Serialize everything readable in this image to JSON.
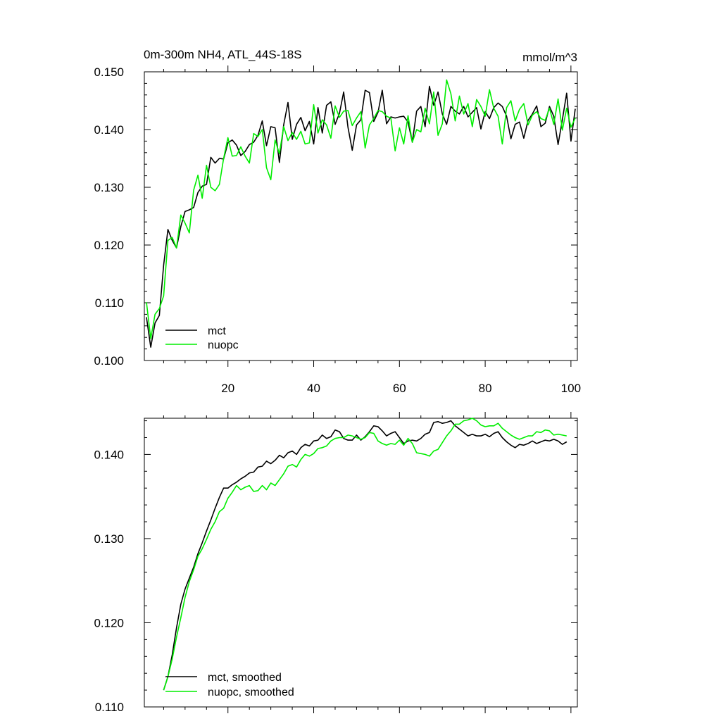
{
  "chart_data": [
    {
      "type": "line",
      "title": "0m-300m NH4, ATL_44S-18S",
      "units": "mmol/m^3",
      "xlabel": "",
      "ylabel": "",
      "xlim": [
        0.5,
        101.5
      ],
      "ylim": [
        0.1,
        0.15
      ],
      "x_ticks": [
        "20",
        "40",
        "60",
        "80",
        "100"
      ],
      "y_ticks": [
        "0.100",
        "0.110",
        "0.120",
        "0.130",
        "0.140",
        "0.150"
      ],
      "legend_position": "bottom-left",
      "x": [
        1,
        2,
        3,
        4,
        5,
        6,
        7,
        8,
        9,
        10,
        11,
        12,
        13,
        14,
        15,
        16,
        17,
        18,
        19,
        20,
        21,
        22,
        23,
        24,
        25,
        26,
        27,
        28,
        29,
        30,
        31,
        32,
        33,
        34,
        35,
        36,
        37,
        38,
        39,
        40,
        41,
        42,
        43,
        44,
        45,
        46,
        47,
        48,
        49,
        50,
        51,
        52,
        53,
        54,
        55,
        56,
        57,
        58,
        59,
        60,
        61,
        62,
        63,
        64,
        65,
        66,
        67,
        68,
        69,
        70,
        71,
        72,
        73,
        74,
        75,
        76,
        77,
        78,
        79,
        80,
        81,
        82,
        83,
        84,
        85,
        86,
        87,
        88,
        89,
        90,
        91,
        92,
        93,
        94,
        95,
        96,
        97,
        98,
        99,
        100,
        101
      ],
      "series": [
        {
          "name": "mct",
          "color": "#000000",
          "values": [
            0.1075,
            0.1023,
            0.1065,
            0.1078,
            0.1165,
            0.1227,
            0.1208,
            0.1195,
            0.1232,
            0.1258,
            0.1261,
            0.1265,
            0.1291,
            0.1302,
            0.1305,
            0.1352,
            0.1342,
            0.135,
            0.1349,
            0.1377,
            0.1382,
            0.1373,
            0.1355,
            0.1362,
            0.1374,
            0.1378,
            0.139,
            0.1415,
            0.1372,
            0.1405,
            0.1403,
            0.1343,
            0.1408,
            0.1447,
            0.1383,
            0.1409,
            0.1421,
            0.1398,
            0.1414,
            0.1375,
            0.1438,
            0.1394,
            0.1442,
            0.1448,
            0.1409,
            0.1428,
            0.1465,
            0.1404,
            0.1364,
            0.1408,
            0.1417,
            0.1468,
            0.1464,
            0.1414,
            0.143,
            0.1468,
            0.141,
            0.1422,
            0.142,
            0.1422,
            0.1423,
            0.1413,
            0.1378,
            0.1432,
            0.144,
            0.1405,
            0.1475,
            0.1442,
            0.1465,
            0.1427,
            0.1409,
            0.144,
            0.1432,
            0.1427,
            0.144,
            0.1422,
            0.143,
            0.1438,
            0.1401,
            0.1431,
            0.1419,
            0.1438,
            0.1446,
            0.144,
            0.1423,
            0.1384,
            0.1409,
            0.1413,
            0.1385,
            0.1416,
            0.1427,
            0.1441,
            0.1405,
            0.1411,
            0.144,
            0.1423,
            0.1374,
            0.1417,
            0.1463,
            0.138,
            0.1436
          ]
        },
        {
          "name": "nuopc",
          "color": "#00ee00",
          "values": [
            0.1101,
            0.1038,
            0.108,
            0.109,
            0.1112,
            0.1208,
            0.1213,
            0.1195,
            0.1252,
            0.1238,
            0.1221,
            0.1295,
            0.1321,
            0.1281,
            0.1338,
            0.13,
            0.1294,
            0.1305,
            0.135,
            0.1386,
            0.1354,
            0.1355,
            0.137,
            0.1354,
            0.1342,
            0.1393,
            0.1388,
            0.14,
            0.1334,
            0.1313,
            0.1382,
            0.1358,
            0.1405,
            0.1381,
            0.1395,
            0.1383,
            0.1397,
            0.1375,
            0.1377,
            0.1443,
            0.1394,
            0.1417,
            0.1408,
            0.1385,
            0.1441,
            0.1421,
            0.1432,
            0.1433,
            0.1407,
            0.142,
            0.1431,
            0.1368,
            0.1408,
            0.1419,
            0.1433,
            0.1431,
            0.1423,
            0.142,
            0.1363,
            0.1403,
            0.1375,
            0.1424,
            0.1378,
            0.14,
            0.1396,
            0.1437,
            0.141,
            0.1465,
            0.139,
            0.141,
            0.1486,
            0.1462,
            0.1415,
            0.1458,
            0.1427,
            0.1445,
            0.1405,
            0.1452,
            0.144,
            0.1423,
            0.1469,
            0.1437,
            0.1423,
            0.1375,
            0.1438,
            0.145,
            0.1415,
            0.1435,
            0.1445,
            0.1408,
            0.1425,
            0.1431,
            0.1419,
            0.1416,
            0.1437,
            0.1409,
            0.1453,
            0.1399,
            0.1437,
            0.1404,
            0.142
          ]
        }
      ]
    },
    {
      "type": "line",
      "title": "",
      "xlabel": "",
      "ylabel": "",
      "xlim": [
        0.5,
        101.5
      ],
      "ylim": [
        0.11,
        0.1443
      ],
      "x_ticks": [],
      "y_ticks": [
        "0.110",
        "0.120",
        "0.130",
        "0.140"
      ],
      "legend_position": "bottom-left",
      "x": [
        5,
        6,
        7,
        8,
        9,
        10,
        11,
        12,
        13,
        14,
        15,
        16,
        17,
        18,
        19,
        20,
        21,
        22,
        23,
        24,
        25,
        26,
        27,
        28,
        29,
        30,
        31,
        32,
        33,
        34,
        35,
        36,
        37,
        38,
        39,
        40,
        41,
        42,
        43,
        44,
        45,
        46,
        47,
        48,
        49,
        50,
        51,
        52,
        53,
        54,
        55,
        56,
        57,
        58,
        59,
        60,
        61,
        62,
        63,
        64,
        65,
        66,
        67,
        68,
        69,
        70,
        71,
        72,
        73,
        74,
        75,
        76,
        77,
        78,
        79,
        80,
        81,
        82,
        83,
        84,
        85,
        86,
        87,
        88,
        89,
        90,
        91,
        92,
        93,
        94,
        95,
        96,
        97,
        98,
        99
      ],
      "series": [
        {
          "name": "mct, smoothed",
          "color": "#000000",
          "values": [
            0.112,
            0.1136,
            0.1162,
            0.1194,
            0.1222,
            0.124,
            0.1253,
            0.1266,
            0.1282,
            0.1295,
            0.1309,
            0.1322,
            0.1336,
            0.1349,
            0.136,
            0.136,
            0.1364,
            0.1367,
            0.1371,
            0.1374,
            0.1378,
            0.1379,
            0.1385,
            0.1386,
            0.1392,
            0.1389,
            0.1393,
            0.1399,
            0.1396,
            0.1402,
            0.1404,
            0.14,
            0.1408,
            0.1412,
            0.141,
            0.1416,
            0.1417,
            0.1423,
            0.1419,
            0.1421,
            0.1429,
            0.1427,
            0.1419,
            0.1417,
            0.1417,
            0.1423,
            0.1417,
            0.1421,
            0.1427,
            0.1434,
            0.1433,
            0.1428,
            0.1422,
            0.1425,
            0.1427,
            0.142,
            0.1413,
            0.1416,
            0.1417,
            0.1416,
            0.1419,
            0.1424,
            0.1426,
            0.1438,
            0.1439,
            0.1437,
            0.1438,
            0.144,
            0.1434,
            0.143,
            0.1426,
            0.1422,
            0.1424,
            0.1422,
            0.1422,
            0.1424,
            0.1421,
            0.1425,
            0.1427,
            0.142,
            0.1415,
            0.1411,
            0.1408,
            0.1412,
            0.1411,
            0.1413,
            0.1416,
            0.1413,
            0.1415,
            0.1417,
            0.1416,
            0.1418,
            0.1416,
            0.1412,
            0.1415
          ]
        },
        {
          "name": "nuopc, smoothed",
          "color": "#00ee00",
          "values": [
            0.112,
            0.1136,
            0.1157,
            0.1183,
            0.1206,
            0.123,
            0.1249,
            0.1263,
            0.1279,
            0.1288,
            0.1299,
            0.1311,
            0.132,
            0.1332,
            0.1336,
            0.1348,
            0.1355,
            0.1363,
            0.1358,
            0.1361,
            0.1363,
            0.1356,
            0.1357,
            0.1363,
            0.1358,
            0.1366,
            0.1363,
            0.137,
            0.1377,
            0.1386,
            0.1388,
            0.1385,
            0.1394,
            0.14,
            0.1398,
            0.1401,
            0.1407,
            0.1408,
            0.141,
            0.1416,
            0.1419,
            0.142,
            0.142,
            0.1423,
            0.1422,
            0.142,
            0.1418,
            0.142,
            0.1426,
            0.1425,
            0.1416,
            0.1413,
            0.1411,
            0.1413,
            0.1412,
            0.1417,
            0.1411,
            0.1419,
            0.1413,
            0.1402,
            0.1401,
            0.14,
            0.1398,
            0.1404,
            0.1406,
            0.1414,
            0.1422,
            0.1428,
            0.1436,
            0.1436,
            0.144,
            0.1441,
            0.1443,
            0.144,
            0.1435,
            0.1433,
            0.1434,
            0.1434,
            0.1437,
            0.1431,
            0.1427,
            0.1423,
            0.142,
            0.1418,
            0.142,
            0.1422,
            0.1422,
            0.1427,
            0.1426,
            0.1429,
            0.1428,
            0.1423,
            0.1424,
            0.1423,
            0.1422
          ]
        }
      ]
    }
  ]
}
